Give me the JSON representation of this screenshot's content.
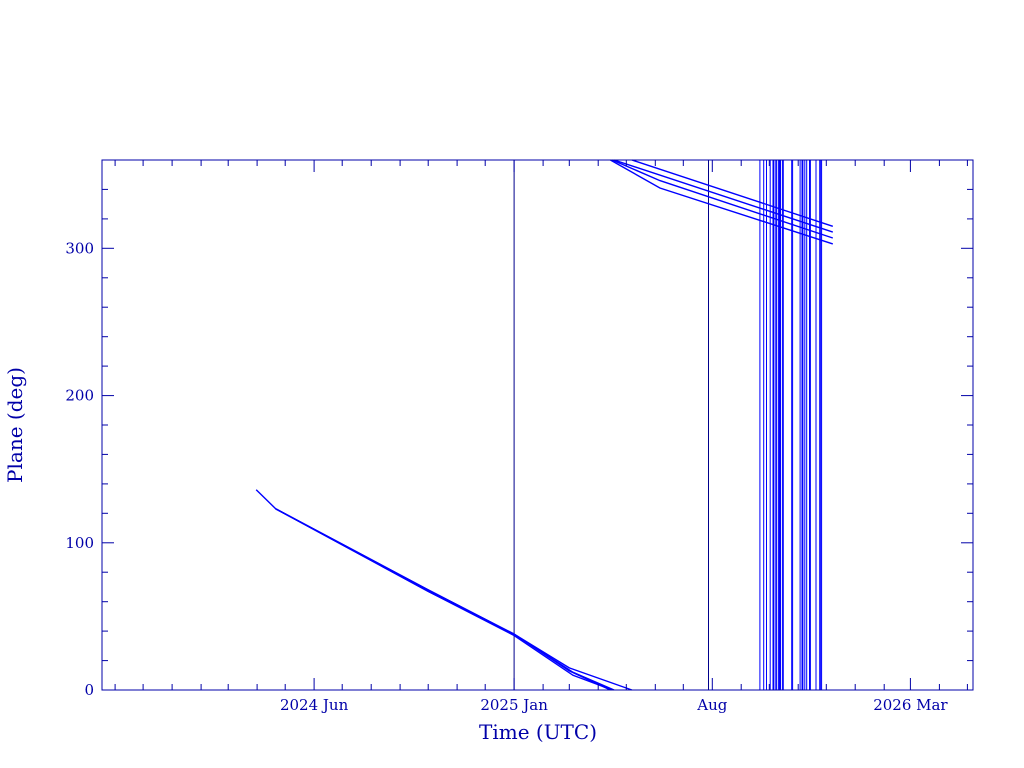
{
  "chart_data": {
    "type": "line",
    "title": "",
    "xlabel": "Time (UTC)",
    "ylabel": "Plane (deg)",
    "ylim": [
      0,
      360
    ],
    "xlim": [
      "2023-10-18",
      "2026-05-07"
    ],
    "x_tick_labels": [
      {
        "label": "2024 Jun",
        "date": "2024-06-01"
      },
      {
        "label": "2025 Jan",
        "date": "2025-01-01"
      },
      {
        "label": "Aug",
        "date": "2025-08-01"
      },
      {
        "label": "2026 Mar",
        "date": "2026-03-01"
      }
    ],
    "y_ticks": [
      0,
      100,
      200,
      300
    ],
    "grid": false,
    "colors": {
      "axes": "#0000a8",
      "series": "#0000ff"
    },
    "series": [
      {
        "values": [
          [
            "2024-03-31",
            136
          ],
          [
            "2024-04-21",
            123
          ],
          [
            "2024-10-01",
            68
          ],
          [
            "2025-01-01",
            38
          ],
          [
            "2025-03-05",
            12
          ],
          [
            "2025-04-18",
            0
          ]
        ]
      },
      {
        "values": [
          [
            "2024-04-21",
            123
          ],
          [
            "2024-10-01",
            67
          ],
          [
            "2025-01-01",
            37
          ],
          [
            "2025-03-05",
            10
          ],
          [
            "2025-04-16",
            0
          ]
        ]
      },
      {
        "values": [
          [
            "2024-04-21",
            123
          ],
          [
            "2024-10-01",
            67
          ],
          [
            "2025-01-01",
            38
          ],
          [
            "2025-03-01",
            13
          ],
          [
            "2025-04-14",
            0
          ]
        ]
      },
      {
        "values": [
          [
            "2024-04-21",
            123
          ],
          [
            "2024-10-01",
            68
          ],
          [
            "2025-01-01",
            38
          ],
          [
            "2025-03-01",
            15
          ],
          [
            "2025-05-07",
            0
          ]
        ]
      },
      {
        "values": [
          [
            "2025-04-14",
            360
          ],
          [
            "2025-06-06",
            341
          ],
          [
            "2025-12-08",
            303
          ]
        ]
      },
      {
        "values": [
          [
            "2025-04-16",
            360
          ],
          [
            "2025-06-06",
            346
          ],
          [
            "2025-12-08",
            307
          ]
        ]
      },
      {
        "values": [
          [
            "2025-04-18",
            360
          ],
          [
            "2025-12-08",
            311
          ]
        ]
      },
      {
        "values": [
          [
            "2025-05-07",
            360
          ],
          [
            "2025-12-08",
            315
          ]
        ]
      }
    ],
    "vertical_lines": [
      "2025-01-01",
      "2025-07-28",
      "2025-09-21",
      "2025-09-25",
      "2025-09-28",
      "2025-10-02",
      "2025-10-05",
      "2025-10-06",
      "2025-10-08",
      "2025-10-09",
      "2025-10-11",
      "2025-10-12",
      "2025-10-13",
      "2025-10-15",
      "2025-10-16",
      "2025-10-25",
      "2025-10-26",
      "2025-11-03",
      "2025-11-05",
      "2025-11-06",
      "2025-11-08",
      "2025-11-10",
      "2025-11-13",
      "2025-11-14",
      "2025-11-20",
      "2025-11-24",
      "2025-11-25",
      "2025-11-26"
    ]
  }
}
